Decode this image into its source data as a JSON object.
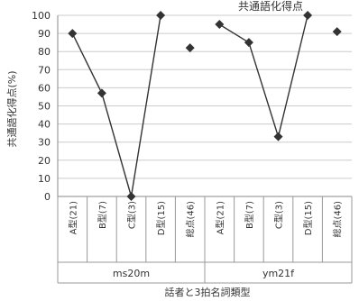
{
  "chart_data": {
    "type": "line",
    "title": "共通語化得点",
    "ylabel": "共通語化得点(%)",
    "xlabel": "話者と3拍名詞類型",
    "ylim": [
      0,
      100
    ],
    "yticks": [
      0,
      10,
      20,
      30,
      40,
      50,
      60,
      70,
      80,
      90,
      100
    ],
    "grid": true,
    "legend": "none",
    "groups": [
      {
        "name": "ms20m",
        "categories": [
          "A型(21)",
          "B型(7)",
          "C型(3)",
          "D型(15)",
          "総点(46)"
        ],
        "values": [
          90,
          57,
          0,
          100,
          82
        ]
      },
      {
        "name": "ym21f",
        "categories": [
          "A型(21)",
          "B型(7)",
          "C型(3)",
          "D型(15)",
          "総点(46)"
        ],
        "values": [
          95,
          85,
          33,
          100,
          91
        ]
      }
    ],
    "connected_points": 4,
    "colors": {
      "line": "#333333",
      "grid": "#cccccc",
      "marker": "#333333"
    }
  }
}
